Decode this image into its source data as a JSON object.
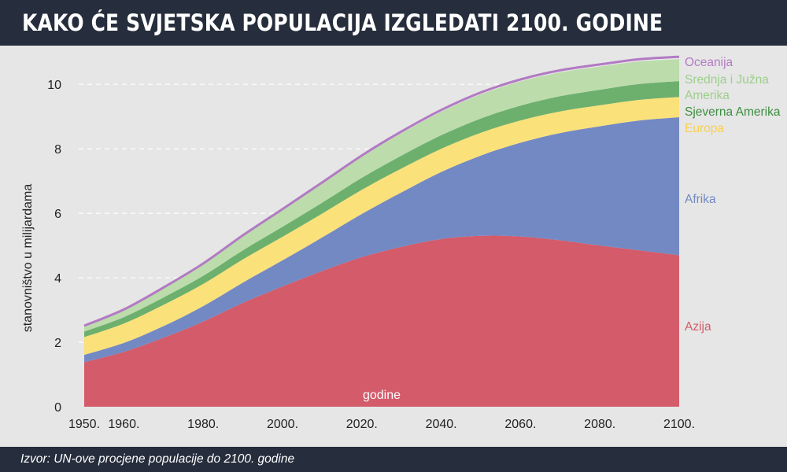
{
  "header": {
    "title": "KAKO ĆE SVJETSKA POPULACIJA IZGLEDATI 2100. GODINE"
  },
  "footer": {
    "source": "Izvor: UN-ove procjene populacije do 2100. godine"
  },
  "chart_data": {
    "type": "area",
    "stacked": true,
    "title": "KAKO ĆE SVJETSKA POPULACIJA IZGLEDATI 2100. GODINE",
    "xlabel": "godine",
    "ylabel": "stanovništvo u milijardama",
    "x": [
      1950,
      1960,
      1970,
      1980,
      1990,
      2000,
      2010,
      2020,
      2030,
      2040,
      2050,
      2060,
      2070,
      2080,
      2090,
      2100
    ],
    "x_tick_labels": [
      "1950.",
      "1960.",
      "1980.",
      "2000.",
      "2020.",
      "2040.",
      "2060.",
      "2080.",
      "2100."
    ],
    "x_tick_values": [
      1950,
      1960,
      1980,
      2000,
      2020,
      2040,
      2060,
      2080,
      2100
    ],
    "y_ticks": [
      0,
      2,
      4,
      6,
      8,
      10
    ],
    "xlim": [
      1950,
      2100
    ],
    "ylim": [
      0,
      11.2
    ],
    "grid": "horizontal-dashed",
    "legend": "right, labels at series end",
    "series": [
      {
        "name": "Azija",
        "color": "#d45b6a",
        "label_color": "#d45b6a",
        "label_lines": [
          "Azija"
        ],
        "values": [
          1.38,
          1.7,
          2.14,
          2.64,
          3.22,
          3.73,
          4.21,
          4.64,
          4.96,
          5.2,
          5.3,
          5.28,
          5.16,
          5.0,
          4.85,
          4.7
        ]
      },
      {
        "name": "Afrika",
        "color": "#7389c4",
        "label_color": "#7389c4",
        "label_lines": [
          "Afrika"
        ],
        "values": [
          0.23,
          0.28,
          0.36,
          0.48,
          0.63,
          0.81,
          1.04,
          1.34,
          1.69,
          2.08,
          2.49,
          2.91,
          3.33,
          3.7,
          4.03,
          4.28
        ]
      },
      {
        "name": "Europa",
        "color": "#fbe17a",
        "label_color": "#f7d04e",
        "label_lines": [
          "Europa"
        ],
        "values": [
          0.55,
          0.6,
          0.66,
          0.69,
          0.72,
          0.73,
          0.74,
          0.75,
          0.74,
          0.72,
          0.71,
          0.69,
          0.67,
          0.65,
          0.64,
          0.63
        ]
      },
      {
        "name": "Sjeverna Amerika",
        "color": "#6db06e",
        "label_color": "#3d8d40",
        "label_lines": [
          "Sjeverna Amerika"
        ],
        "values": [
          0.17,
          0.2,
          0.23,
          0.25,
          0.28,
          0.31,
          0.34,
          0.37,
          0.4,
          0.42,
          0.44,
          0.46,
          0.47,
          0.48,
          0.49,
          0.49
        ]
      },
      {
        "name": "Srednja i Južna Amerika",
        "color": "#bcdcac",
        "label_color": "#9ccf8a",
        "label_lines": [
          "Srednja i Južna",
          "Amerika"
        ],
        "values": [
          0.17,
          0.22,
          0.29,
          0.36,
          0.44,
          0.52,
          0.59,
          0.65,
          0.7,
          0.73,
          0.75,
          0.75,
          0.74,
          0.72,
          0.7,
          0.68
        ]
      },
      {
        "name": "Oceanija",
        "color": "#b27ac4",
        "label_color": "#b27ac4",
        "label_lines": [
          "Oceanija"
        ],
        "line_only": true,
        "values": [
          0.013,
          0.016,
          0.02,
          0.023,
          0.027,
          0.031,
          0.037,
          0.043,
          0.048,
          0.053,
          0.057,
          0.061,
          0.065,
          0.068,
          0.071,
          0.075
        ]
      }
    ]
  }
}
